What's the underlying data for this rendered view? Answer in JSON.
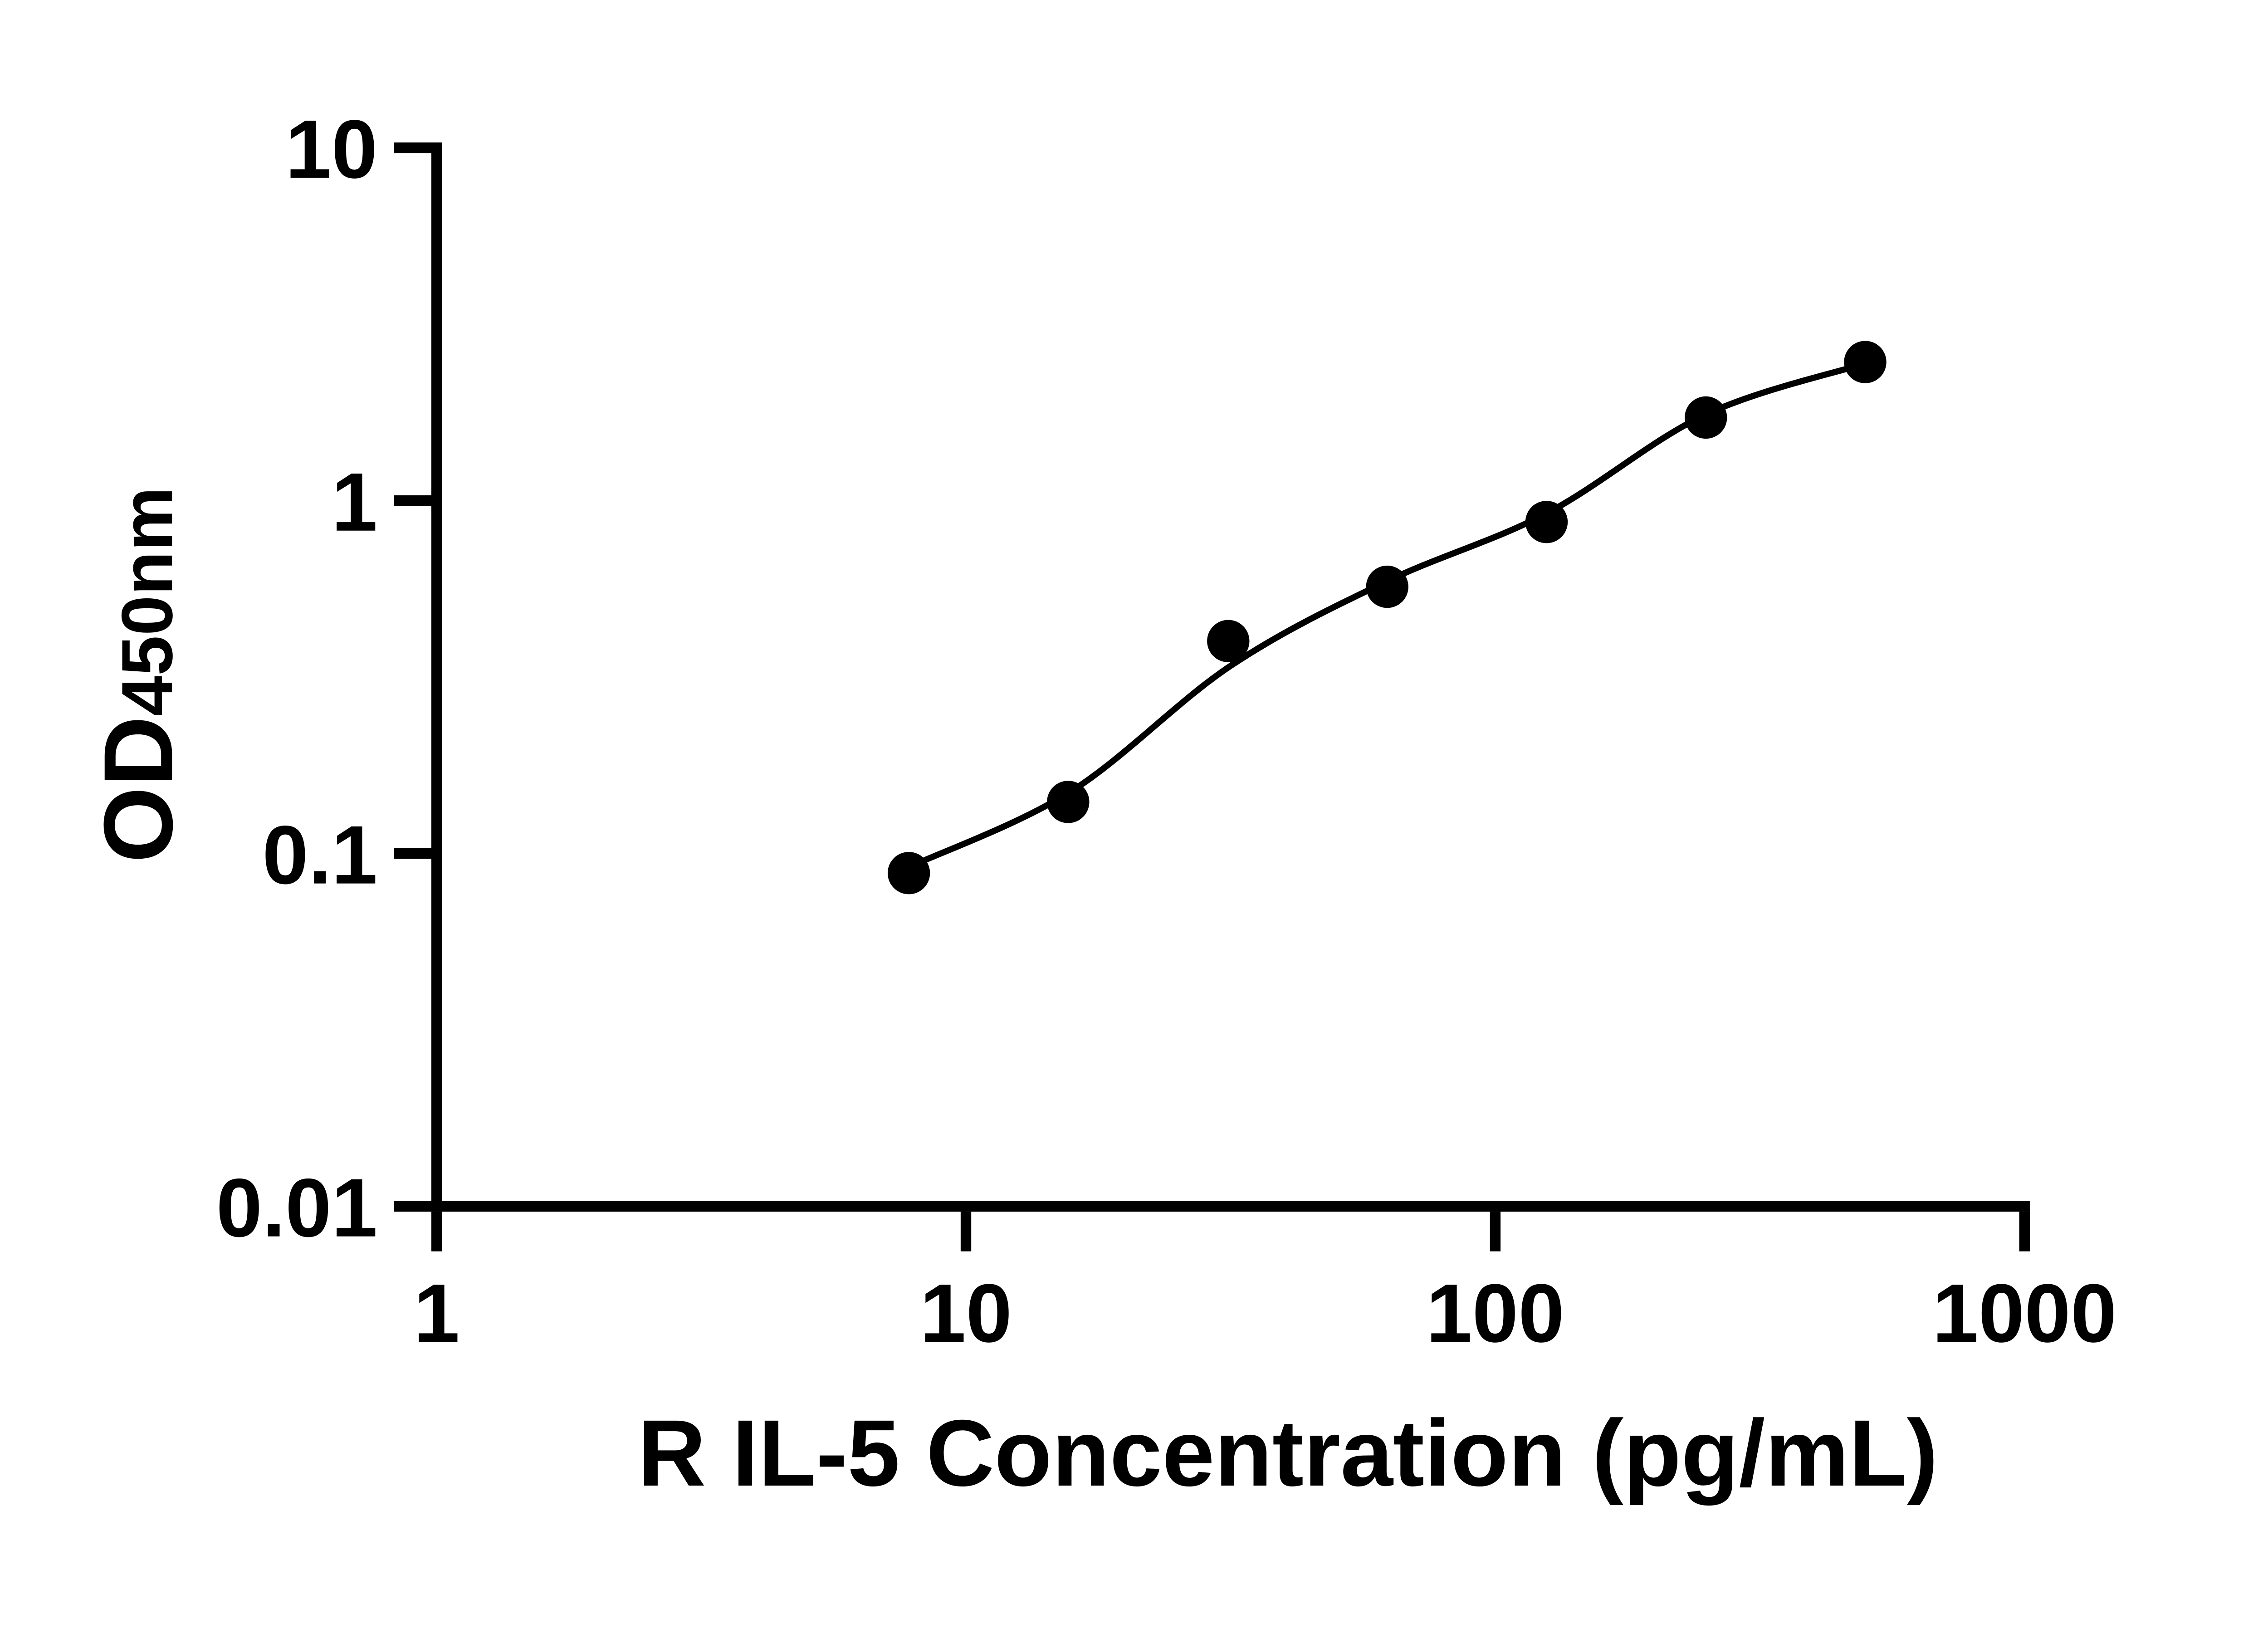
{
  "figure": {
    "background_color": "#ffffff",
    "ink_color": "#000000"
  },
  "chart_data": {
    "type": "scatter",
    "title": "",
    "xlabel": "R IL-5 Concentration (pg/mL)",
    "ylabel": "OD450nm",
    "ylabel_main": "OD",
    "ylabel_sub": "450nm",
    "x_scale": "log10",
    "y_scale": "log10",
    "xlim": [
      1,
      1000
    ],
    "ylim": [
      0.01,
      10
    ],
    "x_ticks": [
      1,
      10,
      100,
      1000
    ],
    "x_tick_labels": [
      "1",
      "10",
      "100",
      "1000"
    ],
    "y_ticks": [
      10,
      1,
      0.1,
      0.01
    ],
    "y_tick_labels": [
      "10",
      "1",
      "0.1",
      "0.01"
    ],
    "grid": false,
    "legend": "none",
    "marker_color": "#000000",
    "line_color": "#000000",
    "series": [
      {
        "name": "standard-points",
        "kind": "scatter",
        "marker": "filled-circle",
        "x": [
          7.8,
          15.6,
          31.3,
          62.5,
          125,
          250,
          500
        ],
        "y": [
          0.088,
          0.14,
          0.4,
          0.57,
          0.87,
          1.72,
          2.47
        ]
      },
      {
        "name": "fitted-curve",
        "kind": "line",
        "x": [
          8.0,
          15.8,
          31.6,
          62.3,
          125,
          249,
          497
        ],
        "y": [
          0.093,
          0.15,
          0.34,
          0.59,
          0.92,
          1.75,
          2.44
        ]
      }
    ]
  }
}
